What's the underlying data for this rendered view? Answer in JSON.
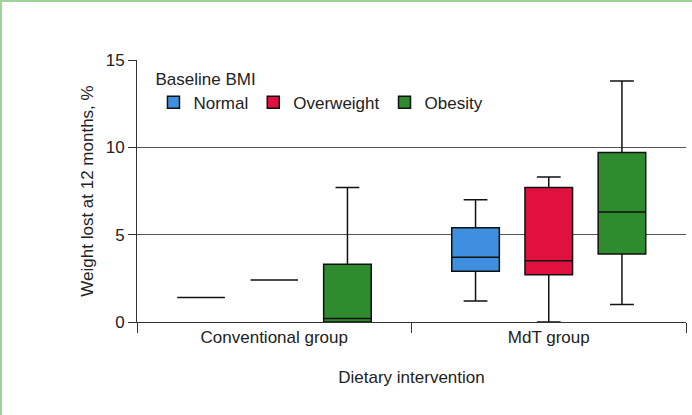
{
  "chart_data": {
    "type": "box",
    "x_label": "Dietary intervention",
    "y_label": "Weight lost at 12 months, %",
    "legend_title": "Baseline BMI",
    "categories": [
      "Conventional group",
      "MdT group"
    ],
    "series": [
      {
        "name": "Normal",
        "color": "#3f8fe0",
        "min": [
          1.4,
          1.2
        ],
        "q1": [
          1.4,
          2.9
        ],
        "median": [
          1.4,
          3.7
        ],
        "q3": [
          1.4,
          5.4
        ],
        "max": [
          1.4,
          7.0
        ]
      },
      {
        "name": "Overweight",
        "color": "#e0103f",
        "min": [
          2.4,
          0
        ],
        "q1": [
          2.4,
          2.7
        ],
        "median": [
          2.4,
          3.5
        ],
        "q3": [
          2.4,
          7.7
        ],
        "max": [
          2.4,
          8.3
        ]
      },
      {
        "name": "Obesity",
        "color": "#2e8b2e",
        "min": [
          0,
          1.0
        ],
        "q1": [
          0,
          3.9
        ],
        "median": [
          0.2,
          6.3
        ],
        "q3": [
          3.3,
          9.7
        ],
        "max": [
          7.7,
          13.8
        ]
      }
    ],
    "ylim": [
      0,
      15
    ],
    "yticks": [
      0,
      5,
      10,
      15
    ],
    "grid": true,
    "legend": "upper left"
  }
}
